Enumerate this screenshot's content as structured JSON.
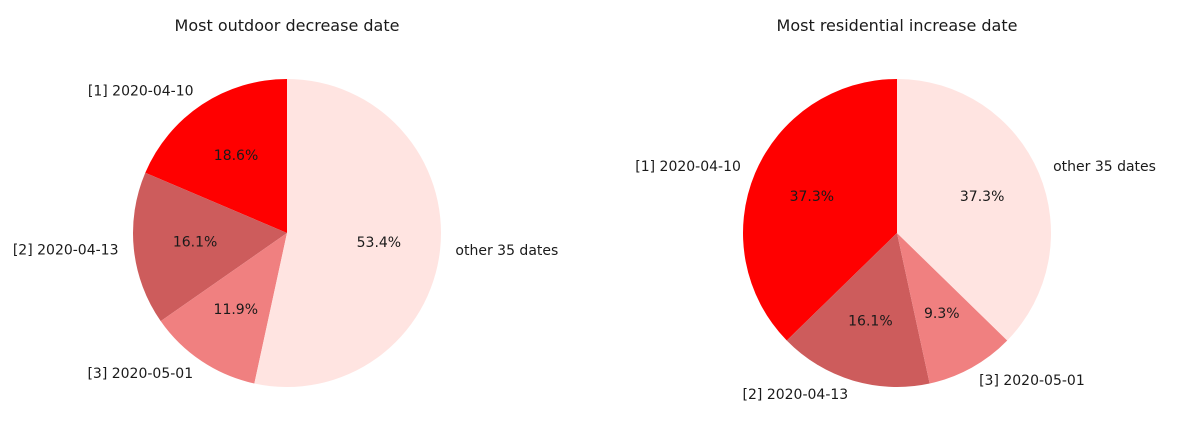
{
  "chart_data": [
    {
      "type": "pie",
      "title": "Most outdoor decrease date",
      "labels": [
        "[1] 2020-04-10",
        "[2] 2020-04-13",
        "[3] 2020-05-01",
        "other 35 dates"
      ],
      "values": [
        18.6,
        16.1,
        11.9,
        53.4
      ],
      "value_labels": [
        "18.6%",
        "16.1%",
        "11.9%",
        "53.4%"
      ],
      "colors": [
        "#ff0000",
        "#cd5c5c",
        "#f08080",
        "#ffe4e1"
      ],
      "start_angle_deg": 90,
      "direction": "counterclockwise",
      "legend": "none"
    },
    {
      "type": "pie",
      "title": "Most residential increase date",
      "labels": [
        "[1] 2020-04-10",
        "[2] 2020-04-13",
        "[3] 2020-05-01",
        "other 35 dates"
      ],
      "values": [
        37.3,
        16.1,
        9.3,
        37.3
      ],
      "value_labels": [
        "37.3%",
        "16.1%",
        "9.3%",
        "37.3%"
      ],
      "colors": [
        "#ff0000",
        "#cd5c5c",
        "#f08080",
        "#ffe4e1"
      ],
      "start_angle_deg": 90,
      "direction": "counterclockwise",
      "legend": "none"
    }
  ]
}
